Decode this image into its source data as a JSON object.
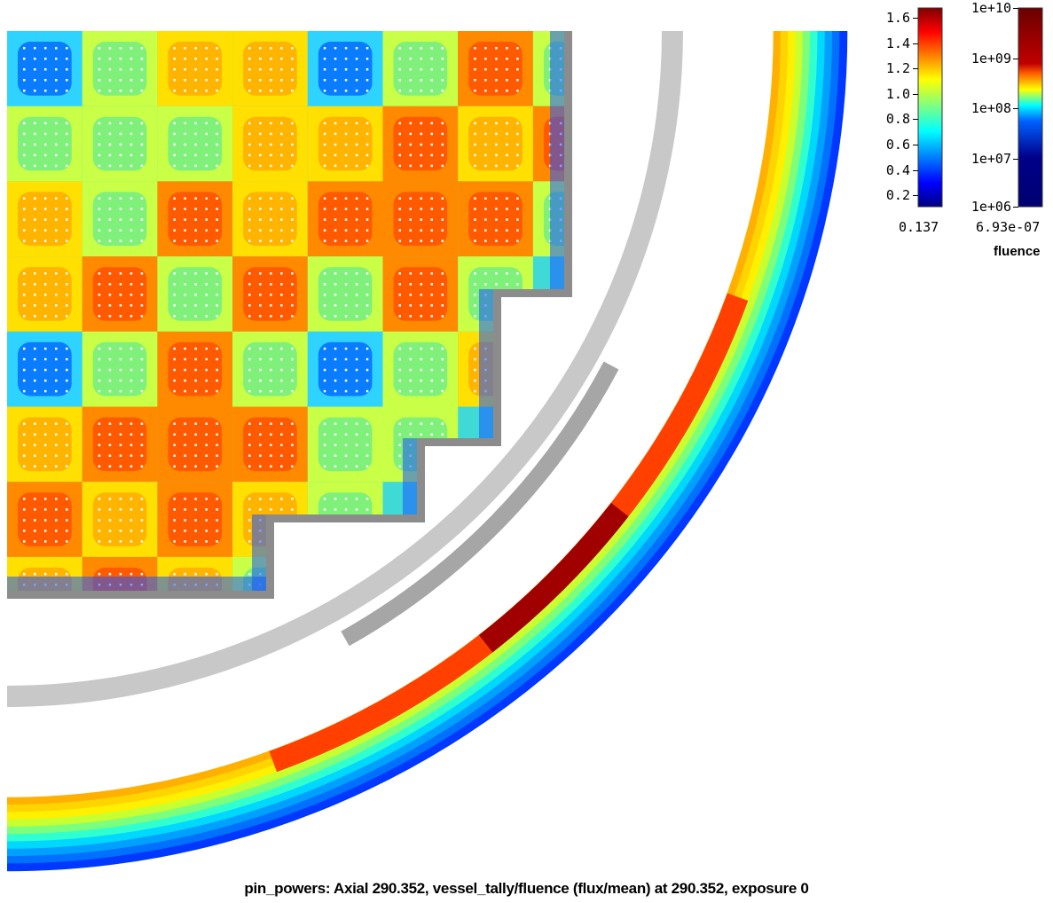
{
  "caption": "pin_powers: Axial 290.352, vessel_tally/fluence (flux/mean) at 290.352, exposure 0",
  "pin_power_colorbar": {
    "ticks": [
      "1.6",
      "1.4",
      "1.2",
      "1.0",
      "0.8",
      "0.6",
      "0.4",
      "0.2"
    ],
    "min_label": "0.137",
    "colormap": "jet"
  },
  "fluence_colorbar": {
    "ticks": [
      "1e+10",
      "1e+09",
      "1e+08",
      "1e+07",
      "1e+06"
    ],
    "min_label": "6.93e-07",
    "label": "fluence",
    "scale": "log",
    "colormap": "jet"
  },
  "colors": {
    "baffle": "#8c8c8c",
    "core_barrel": "#c8c8c8",
    "neutron_pad": "#a6a6a6",
    "pin_marker": "#ffffff"
  }
}
